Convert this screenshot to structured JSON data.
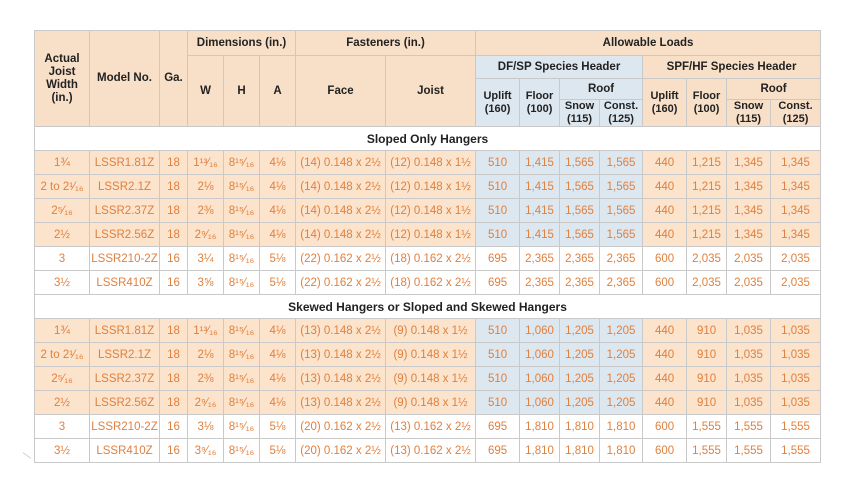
{
  "header": {
    "actual_joist_width": "Actual Joist Width (in.)",
    "model_no": "Model No.",
    "ga": "Ga.",
    "dimensions": "Dimensions (in.)",
    "fasteners": "Fasteners (in.)",
    "allowable_loads": "Allowable Loads",
    "w": "W",
    "h": "H",
    "a": "A",
    "face": "Face",
    "joist": "Joist",
    "df_sp": "DF/SP Species Header",
    "spf_hf": "SPF/HF Species Header",
    "uplift": "Uplift (160)",
    "floor": "Floor (100)",
    "roof": "Roof",
    "snow": "Snow (115)",
    "const": "Const. (125)"
  },
  "sections": [
    {
      "title": "Sloped Only Hangers",
      "rows": [
        {
          "width": "1¾",
          "model": "LSSR1.81Z",
          "ga": "18",
          "w": "1¹³⁄₁₆",
          "h": "8¹⁵⁄₁₆",
          "a": "4⅛",
          "face": "(14) 0.148 x 2½",
          "joist": "(12) 0.148 x 1½",
          "df": [
            "510",
            "1,415",
            "1,565",
            "1,565"
          ],
          "spf": [
            "440",
            "1,215",
            "1,345",
            "1,345"
          ],
          "style": "peach"
        },
        {
          "width": "2 to 2¹⁄₁₆",
          "model": "LSSR2.1Z",
          "ga": "18",
          "w": "2⅛",
          "h": "8¹⁵⁄₁₆",
          "a": "4⅛",
          "face": "(14) 0.148 x 2½",
          "joist": "(12) 0.148 x 1½",
          "df": [
            "510",
            "1,415",
            "1,565",
            "1,565"
          ],
          "spf": [
            "440",
            "1,215",
            "1,345",
            "1,345"
          ],
          "style": "peach"
        },
        {
          "width": "2⁵⁄₁₆",
          "model": "LSSR2.37Z",
          "ga": "18",
          "w": "2⅜",
          "h": "8¹⁵⁄₁₆",
          "a": "4⅛",
          "face": "(14) 0.148 x 2½",
          "joist": "(12) 0.148 x 1½",
          "df": [
            "510",
            "1,415",
            "1,565",
            "1,565"
          ],
          "spf": [
            "440",
            "1,215",
            "1,345",
            "1,345"
          ],
          "style": "peach"
        },
        {
          "width": "2½",
          "model": "LSSR2.56Z",
          "ga": "18",
          "w": "2⁹⁄₁₆",
          "h": "8¹⁵⁄₁₆",
          "a": "4⅛",
          "face": "(14) 0.148 x 2½",
          "joist": "(12) 0.148 x 1½",
          "df": [
            "510",
            "1,415",
            "1,565",
            "1,565"
          ],
          "spf": [
            "440",
            "1,215",
            "1,345",
            "1,345"
          ],
          "style": "peach"
        },
        {
          "width": "3",
          "model": "LSSR210-2Z",
          "ga": "16",
          "w": "3¼",
          "h": "8¹⁵⁄₁₆",
          "a": "5⅛",
          "face": "(22) 0.162 x 2½",
          "joist": "(18) 0.162 x 2½",
          "df": [
            "695",
            "2,365",
            "2,365",
            "2,365"
          ],
          "spf": [
            "600",
            "2,035",
            "2,035",
            "2,035"
          ],
          "style": "white"
        },
        {
          "width": "3½",
          "model": "LSSR410Z",
          "ga": "16",
          "w": "3⅝",
          "h": "8¹⁵⁄₁₆",
          "a": "5⅛",
          "face": "(22) 0.162 x 2½",
          "joist": "(18) 0.162 x 2½",
          "df": [
            "695",
            "2,365",
            "2,365",
            "2,365"
          ],
          "spf": [
            "600",
            "2,035",
            "2,035",
            "2,035"
          ],
          "style": "white"
        }
      ]
    },
    {
      "title": "Skewed Hangers or Sloped and Skewed Hangers",
      "rows": [
        {
          "width": "1¾",
          "model": "LSSR1.81Z",
          "ga": "18",
          "w": "1¹³⁄₁₆",
          "h": "8¹⁵⁄₁₆",
          "a": "4⅛",
          "face": "(13) 0.148 x 2½",
          "joist": "(9) 0.148 x 1½",
          "df": [
            "510",
            "1,060",
            "1,205",
            "1,205"
          ],
          "spf": [
            "440",
            "910",
            "1,035",
            "1,035"
          ],
          "style": "peach"
        },
        {
          "width": "2 to 2¹⁄₁₆",
          "model": "LSSR2.1Z",
          "ga": "18",
          "w": "2⅛",
          "h": "8¹⁵⁄₁₆",
          "a": "4⅛",
          "face": "(13) 0.148 x 2½",
          "joist": "(9) 0.148 x 1½",
          "df": [
            "510",
            "1,060",
            "1,205",
            "1,205"
          ],
          "spf": [
            "440",
            "910",
            "1,035",
            "1,035"
          ],
          "style": "peach"
        },
        {
          "width": "2⁵⁄₁₆",
          "model": "LSSR2.37Z",
          "ga": "18",
          "w": "2⅜",
          "h": "8¹⁵⁄₁₆",
          "a": "4⅛",
          "face": "(13) 0.148 x 2½",
          "joist": "(9) 0.148 x 1½",
          "df": [
            "510",
            "1,060",
            "1,205",
            "1,205"
          ],
          "spf": [
            "440",
            "910",
            "1,035",
            "1,035"
          ],
          "style": "peach"
        },
        {
          "width": "2½",
          "model": "LSSR2.56Z",
          "ga": "18",
          "w": "2⁹⁄₁₆",
          "h": "8¹⁵⁄₁₆",
          "a": "4⅛",
          "face": "(13) 0.148 x 2½",
          "joist": "(9) 0.148 x 1½",
          "df": [
            "510",
            "1,060",
            "1,205",
            "1,205"
          ],
          "spf": [
            "440",
            "910",
            "1,035",
            "1,035"
          ],
          "style": "peach"
        },
        {
          "width": "3",
          "model": "LSSR210-2Z",
          "ga": "16",
          "w": "3⅛",
          "h": "8¹⁵⁄₁₆",
          "a": "5⅛",
          "face": "(20) 0.162 x 2½",
          "joist": "(13) 0.162 x 2½",
          "df": [
            "695",
            "1,810",
            "1,810",
            "1,810"
          ],
          "spf": [
            "600",
            "1,555",
            "1,555",
            "1,555"
          ],
          "style": "white"
        },
        {
          "width": "3½",
          "model": "LSSR410Z",
          "ga": "16",
          "w": "3⁹⁄₁₆",
          "h": "8¹⁵⁄₁₆",
          "a": "5⅛",
          "face": "(20) 0.162 x 2½",
          "joist": "(13) 0.162 x 2½",
          "df": [
            "695",
            "1,810",
            "1,810",
            "1,810"
          ],
          "spf": [
            "600",
            "1,555",
            "1,555",
            "1,555"
          ],
          "style": "white"
        }
      ]
    }
  ],
  "colors": {
    "header_peach": "#f8dfc8",
    "header_blue": "#dde7ef",
    "row_peach": "#fbe3cc",
    "value_orange": "#e0803e"
  }
}
